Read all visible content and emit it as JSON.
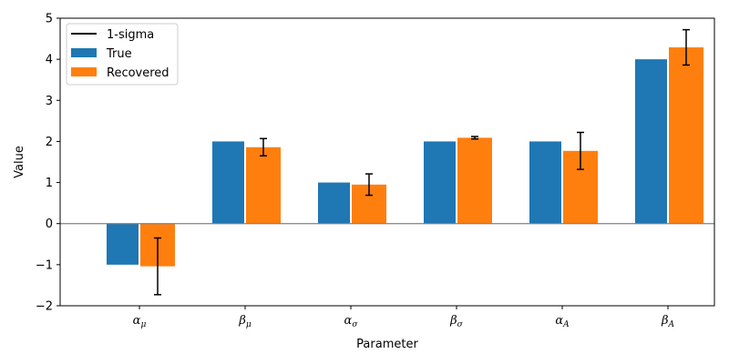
{
  "chart_data": {
    "type": "bar",
    "title": "",
    "xlabel": "Parameter",
    "ylabel": "Value",
    "ylim": [
      -2,
      5
    ],
    "yticks": [
      "−2",
      "−1",
      "0",
      "1",
      "2",
      "3",
      "4",
      "5"
    ],
    "ytick_values": [
      -2,
      -1,
      0,
      1,
      2,
      3,
      4,
      5
    ],
    "categories": [
      {
        "symbol": "α",
        "sub": "μ"
      },
      {
        "symbol": "β",
        "sub": "μ"
      },
      {
        "symbol": "α",
        "sub": "σ"
      },
      {
        "symbol": "β",
        "sub": "σ"
      },
      {
        "symbol": "α",
        "sub": "A"
      },
      {
        "symbol": "β",
        "sub": "A"
      }
    ],
    "series": [
      {
        "name": "True",
        "color": "#1f77b4",
        "values": [
          -1,
          2,
          1,
          2,
          2,
          4
        ]
      },
      {
        "name": "Recovered",
        "color": "#ff7f0e",
        "values": [
          -1.04,
          1.86,
          0.95,
          2.09,
          1.77,
          4.29
        ],
        "error": [
          0.69,
          0.21,
          0.26,
          0.03,
          0.45,
          0.43
        ]
      }
    ],
    "zero_line": true,
    "grid": false,
    "legend": {
      "position": "top-left",
      "errorbar_label": "1-sigma",
      "errorbar_color": "#000000"
    }
  }
}
